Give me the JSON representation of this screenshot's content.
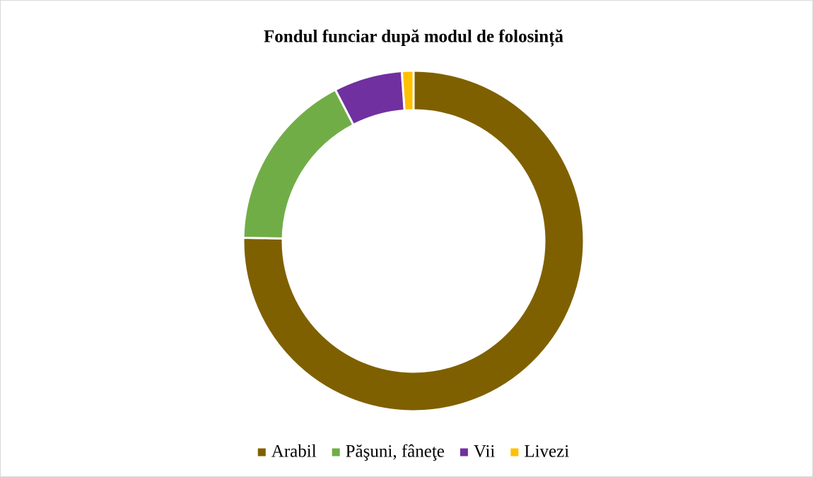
{
  "chart_data": {
    "type": "donut",
    "title": "Fondul funciar după modul de folosință",
    "categories": [
      "Arabil",
      "Păşuni, fâneţe",
      "Vii",
      "Livezi"
    ],
    "values": [
      75.3,
      17.1,
      6.5,
      1.1
    ],
    "colors": [
      "#7f6000",
      "#70ad47",
      "#7030a0",
      "#ffc000"
    ],
    "legend": "bottom"
  }
}
